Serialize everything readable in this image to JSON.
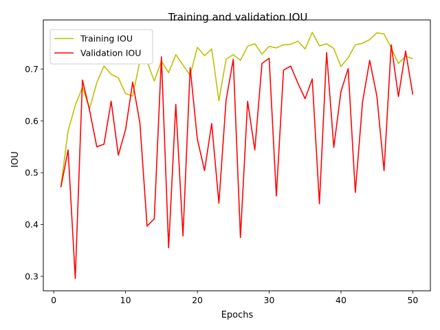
{
  "chart_data": {
    "type": "line",
    "title": "Training and validation IOU",
    "xlabel": "Epochs",
    "ylabel": "IOU",
    "xlim": [
      -1.45,
      52.45
    ],
    "ylim": [
      0.272,
      0.795
    ],
    "xticks": [
      0,
      10,
      20,
      30,
      40,
      50
    ],
    "yticks": [
      0.3,
      0.4,
      0.5,
      0.6,
      0.7
    ],
    "grid": false,
    "legend": "top-left",
    "x": [
      1,
      2,
      3,
      4,
      5,
      6,
      7,
      8,
      9,
      10,
      11,
      12,
      13,
      14,
      15,
      16,
      17,
      18,
      19,
      20,
      21,
      22,
      23,
      24,
      25,
      26,
      27,
      28,
      29,
      30,
      31,
      32,
      33,
      34,
      35,
      36,
      37,
      38,
      39,
      40,
      41,
      42,
      43,
      44,
      45,
      46,
      47,
      48,
      49,
      50
    ],
    "series": [
      {
        "name": "Training IOU",
        "color": "#bfbf00",
        "values": [
          0.474,
          0.581,
          0.63,
          0.665,
          0.624,
          0.674,
          0.706,
          0.69,
          0.683,
          0.653,
          0.648,
          0.716,
          0.715,
          0.677,
          0.716,
          0.693,
          0.728,
          0.708,
          0.688,
          0.742,
          0.726,
          0.739,
          0.639,
          0.719,
          0.728,
          0.717,
          0.744,
          0.749,
          0.729,
          0.744,
          0.741,
          0.747,
          0.748,
          0.754,
          0.739,
          0.771,
          0.745,
          0.749,
          0.74,
          0.705,
          0.722,
          0.747,
          0.75,
          0.757,
          0.77,
          0.768,
          0.741,
          0.711,
          0.725,
          0.72
        ]
      },
      {
        "name": "Validation IOU",
        "color": "#ff0000",
        "values": [
          0.472,
          0.544,
          0.296,
          0.679,
          0.62,
          0.55,
          0.555,
          0.638,
          0.534,
          0.583,
          0.675,
          0.596,
          0.397,
          0.411,
          0.724,
          0.355,
          0.632,
          0.378,
          0.703,
          0.565,
          0.504,
          0.595,
          0.441,
          0.64,
          0.719,
          0.375,
          0.638,
          0.544,
          0.711,
          0.721,
          0.455,
          0.698,
          0.706,
          0.673,
          0.643,
          0.681,
          0.44,
          0.732,
          0.549,
          0.657,
          0.701,
          0.462,
          0.636,
          0.717,
          0.648,
          0.504,
          0.747,
          0.647,
          0.735,
          0.651
        ]
      }
    ]
  }
}
